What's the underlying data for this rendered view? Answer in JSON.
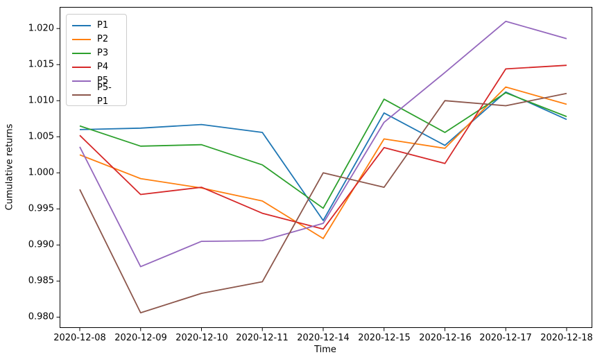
{
  "chart_data": {
    "type": "line",
    "title": "",
    "xlabel": "Time",
    "ylabel": "Cumulative returns",
    "grid": false,
    "legend_position": "upper-left",
    "x_categories": [
      "2020-12-08",
      "2020-12-09",
      "2020-12-10",
      "2020-12-11",
      "2020-12-14",
      "2020-12-15",
      "2020-12-16",
      "2020-12-17",
      "2020-12-18"
    ],
    "y_tick_labels": [
      "0.980",
      "0.985",
      "0.990",
      "0.995",
      "1.000",
      "1.005",
      "1.010",
      "1.015",
      "1.020"
    ],
    "y_ticks": [
      0.98,
      0.985,
      0.99,
      0.995,
      1.0,
      1.005,
      1.01,
      1.015,
      1.02
    ],
    "ylim": [
      0.9785,
      1.0229
    ],
    "series": [
      {
        "name": "P1",
        "color": "#1f77b4",
        "values": [
          1.006,
          1.0062,
          1.0067,
          1.0056,
          0.9934,
          1.0083,
          1.0038,
          1.0112,
          1.0074
        ]
      },
      {
        "name": "P2",
        "color": "#ff7f0e",
        "values": [
          1.0025,
          0.9992,
          0.9979,
          0.9961,
          0.9909,
          1.0047,
          1.0034,
          1.0119,
          1.0095
        ]
      },
      {
        "name": "P3",
        "color": "#2ca02c",
        "values": [
          1.0065,
          1.0037,
          1.0039,
          1.0011,
          0.9951,
          1.0102,
          1.0056,
          1.0111,
          1.0078
        ]
      },
      {
        "name": "P4",
        "color": "#d62728",
        "values": [
          1.0052,
          0.997,
          0.998,
          0.9944,
          0.9922,
          1.0035,
          1.0013,
          1.0144,
          1.0149
        ]
      },
      {
        "name": "P5",
        "color": "#9467bd",
        "values": [
          1.0036,
          0.987,
          0.9905,
          0.9906,
          0.993,
          1.007,
          1.0139,
          1.021,
          1.0186
        ]
      },
      {
        "name": "P5-P1",
        "color": "#8c564b",
        "values": [
          0.9977,
          0.9806,
          0.9833,
          0.9849,
          1.0,
          0.998,
          1.01,
          1.0093,
          1.011
        ]
      }
    ]
  }
}
